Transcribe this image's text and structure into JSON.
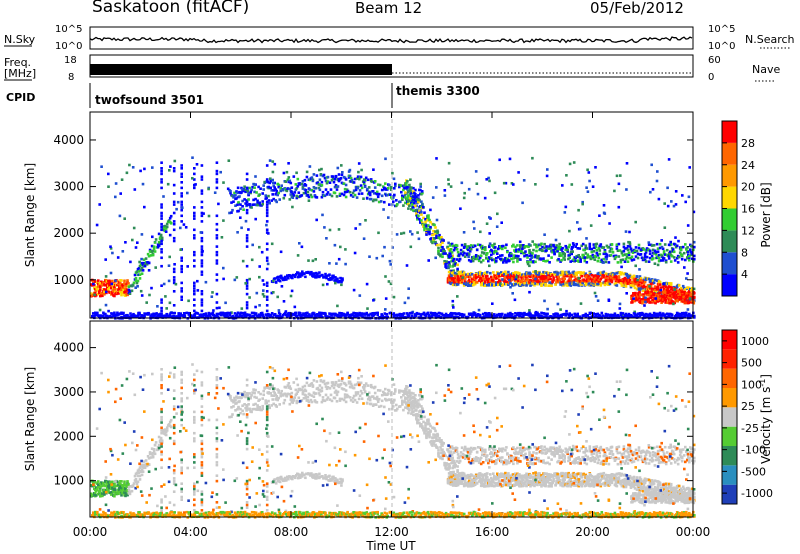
{
  "header": {
    "station": "Saskatoon (fitACF)",
    "beam": "Beam 12",
    "date": "05/Feb/2012"
  },
  "top_panels": {
    "nsky_label": "N.Sky",
    "nsky_ticks": [
      "10^5",
      "10^0"
    ],
    "nsky_ticks_right": [
      "10^5",
      "10^0"
    ],
    "nsearch_label": "N.Search",
    "freq_label_line1": "Freq.",
    "freq_label_line2": "[MHz]",
    "freq_ticks": [
      "18",
      "8"
    ],
    "nave_ticks": [
      "60",
      "0"
    ],
    "nave_label": "Nave",
    "cpid_label": "CPID",
    "cpid_segments": [
      {
        "label": "twofsound 3501",
        "start_hour": 0,
        "end_hour": 12
      },
      {
        "label": "themis 3300",
        "start_hour": 12,
        "end_hour": 24
      }
    ]
  },
  "chart_data": [
    {
      "type": "heatmap",
      "name": "power-panel",
      "ylabel": "Slant Range [km]",
      "ylim": [
        180,
        4600
      ],
      "yticks": [
        1000,
        2000,
        3000,
        4000
      ],
      "xlim": [
        0,
        24
      ],
      "colorbar_label": "Power [dB]",
      "colorbar_ticks": [
        "4",
        "8",
        "12",
        "16",
        "20",
        "24",
        "28"
      ],
      "colorbar_colors": [
        "#0000ff",
        "#1f4fd0",
        "#2e8b57",
        "#32cd32",
        "#ffd700",
        "#ff9900",
        "#ff6600",
        "#ff0000"
      ]
    },
    {
      "type": "heatmap",
      "name": "velocity-panel",
      "ylabel": "Slant Range [km]",
      "ylim": [
        180,
        4600
      ],
      "yticks": [
        1000,
        2000,
        3000,
        4000
      ],
      "xlim": [
        0,
        24
      ],
      "xlabel": "Time UT",
      "xticks": [
        "00:00",
        "04:00",
        "08:00",
        "12:00",
        "16:00",
        "20:00",
        "00:00"
      ],
      "colorbar_label": "Velocity [m s",
      "colorbar_label_sup": "-1",
      "colorbar_label_close": "]",
      "colorbar_ticks": [
        "1000",
        "500",
        "100",
        "25",
        "-25",
        "-100",
        "-500",
        "-1000"
      ],
      "colorbar_colors": [
        "#1f3fb8",
        "#2a8fbf",
        "#2e8b57",
        "#55cc33",
        "#c8c8c8",
        "#ff9900",
        "#ff6600",
        "#ff2200",
        "#ff0000"
      ]
    }
  ]
}
